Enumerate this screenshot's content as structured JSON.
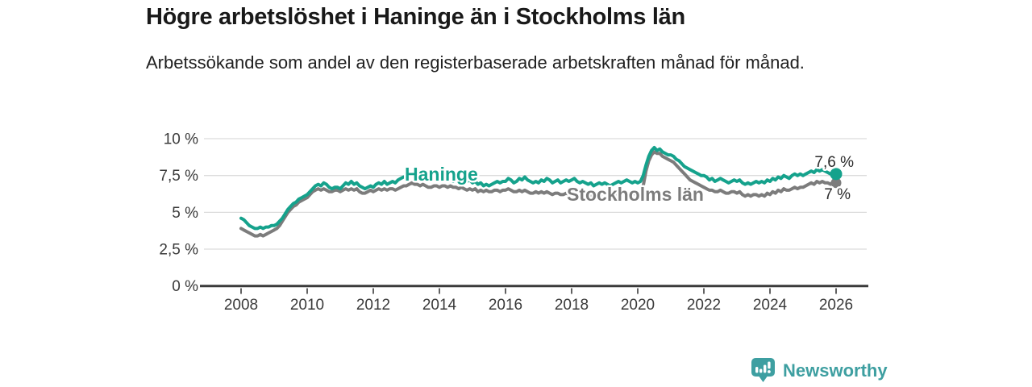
{
  "header": {
    "title": "Högre arbetslöshet i Haninge än i Stockholms län",
    "subtitle": "Arbetssökande som andel av den registerbaserade arbetskraften månad för månad."
  },
  "footer": {
    "brand": "Newsworthy",
    "brand_color": "#3e9fa1"
  },
  "chart_data": {
    "type": "line",
    "title": "Högre arbetslöshet i Haninge än i Stockholms län",
    "subtitle": "Arbetssökande som andel av den registerbaserade arbetskraften månad för månad.",
    "xlabel": "",
    "ylabel": "",
    "unit": "%",
    "grid": "horizontal-only",
    "legend_position": "inline-labels",
    "x_start": 2008.0,
    "x_step_years": 0.0833333,
    "x_range": [
      2008.0,
      2026.0
    ],
    "ylim": [
      0,
      10
    ],
    "yticks": [
      {
        "value": 0,
        "label": "0 %"
      },
      {
        "value": 2.5,
        "label": "2,5 %"
      },
      {
        "value": 5,
        "label": "5 %"
      },
      {
        "value": 7.5,
        "label": "7,5 %"
      },
      {
        "value": 10,
        "label": "10 %"
      }
    ],
    "xticks": [
      2008,
      2010,
      2012,
      2014,
      2016,
      2018,
      2020,
      2022,
      2024,
      2026
    ],
    "axis_color": "#3a3a3a",
    "gridline_color": "#dcdcdc",
    "annotation_color": "#2b2b2b",
    "series": [
      {
        "id": "haninge",
        "name": "Haninge",
        "color": "#15a28c",
        "end_label": "7,6 %",
        "end_value": 7.6,
        "values": [
          4.6,
          4.5,
          4.3,
          4.1,
          4.0,
          3.9,
          3.9,
          4.0,
          3.9,
          4.0,
          4.0,
          4.1,
          4.1,
          4.2,
          4.4,
          4.6,
          4.9,
          5.2,
          5.4,
          5.6,
          5.7,
          5.9,
          6.0,
          6.1,
          6.2,
          6.4,
          6.6,
          6.8,
          6.9,
          6.8,
          7.0,
          6.9,
          6.7,
          6.6,
          6.7,
          6.7,
          6.6,
          6.8,
          7.0,
          6.9,
          7.1,
          6.9,
          7.0,
          6.8,
          6.7,
          6.6,
          6.7,
          6.8,
          6.7,
          6.9,
          7.0,
          6.9,
          7.1,
          6.9,
          7.0,
          7.1,
          7.0,
          7.2,
          7.3,
          7.4,
          7.4,
          7.5,
          7.7,
          7.6,
          7.7,
          7.6,
          7.7,
          7.5,
          7.4,
          7.3,
          7.4,
          7.3,
          7.2,
          7.3,
          7.4,
          7.2,
          7.3,
          7.1,
          7.2,
          7.3,
          7.1,
          7.2,
          7.1,
          7.2,
          7.0,
          7.1,
          6.9,
          7.0,
          6.8,
          6.9,
          6.8,
          6.9,
          7.0,
          7.1,
          7.0,
          7.1,
          7.1,
          7.3,
          7.2,
          7.0,
          7.1,
          7.3,
          7.2,
          7.4,
          7.2,
          7.1,
          7.0,
          7.1,
          7.0,
          7.2,
          7.1,
          7.3,
          7.2,
          7.0,
          7.1,
          7.2,
          7.0,
          7.1,
          7.2,
          7.1,
          7.2,
          7.3,
          7.1,
          7.0,
          7.1,
          7.0,
          6.9,
          7.0,
          6.8,
          6.9,
          7.0,
          6.9,
          7.0,
          6.9,
          6.8,
          6.9,
          7.0,
          7.1,
          7.0,
          7.1,
          7.2,
          7.1,
          7.0,
          7.1,
          7.0,
          7.1,
          7.5,
          8.2,
          8.8,
          9.2,
          9.4,
          9.2,
          9.3,
          9.1,
          9.0,
          8.9,
          8.9,
          8.8,
          8.6,
          8.5,
          8.3,
          8.1,
          8.0,
          7.9,
          7.8,
          7.7,
          7.6,
          7.5,
          7.5,
          7.4,
          7.2,
          7.3,
          7.1,
          7.2,
          7.3,
          7.2,
          7.1,
          7.0,
          7.1,
          7.2,
          7.1,
          7.2,
          7.0,
          6.9,
          7.0,
          6.9,
          7.0,
          7.1,
          7.0,
          7.1,
          7.0,
          7.2,
          7.1,
          7.3,
          7.2,
          7.4,
          7.3,
          7.5,
          7.4,
          7.3,
          7.5,
          7.6,
          7.5,
          7.6,
          7.5,
          7.6,
          7.7,
          7.8,
          7.7,
          7.9,
          7.8,
          7.9,
          7.8,
          7.7,
          7.6,
          7.7,
          7.6
        ]
      },
      {
        "id": "stockholms-lan",
        "name": "Stockholms län",
        "color": "#7c7c7c",
        "end_label": "7 %",
        "end_value": 7.0,
        "values": [
          3.9,
          3.8,
          3.7,
          3.6,
          3.5,
          3.4,
          3.4,
          3.5,
          3.4,
          3.5,
          3.6,
          3.7,
          3.8,
          3.9,
          4.1,
          4.4,
          4.7,
          5.0,
          5.2,
          5.4,
          5.5,
          5.7,
          5.8,
          5.9,
          6.0,
          6.2,
          6.4,
          6.5,
          6.6,
          6.5,
          6.6,
          6.5,
          6.4,
          6.4,
          6.5,
          6.5,
          6.4,
          6.5,
          6.6,
          6.5,
          6.6,
          6.5,
          6.6,
          6.4,
          6.3,
          6.3,
          6.4,
          6.5,
          6.4,
          6.5,
          6.6,
          6.5,
          6.6,
          6.5,
          6.6,
          6.6,
          6.5,
          6.6,
          6.7,
          6.8,
          6.8,
          6.9,
          7.0,
          6.9,
          6.9,
          6.8,
          6.9,
          6.8,
          6.7,
          6.7,
          6.8,
          6.8,
          6.7,
          6.8,
          6.8,
          6.7,
          6.8,
          6.7,
          6.7,
          6.6,
          6.7,
          6.6,
          6.5,
          6.6,
          6.5,
          6.6,
          6.4,
          6.5,
          6.4,
          6.5,
          6.4,
          6.4,
          6.5,
          6.5,
          6.4,
          6.5,
          6.5,
          6.6,
          6.5,
          6.4,
          6.4,
          6.5,
          6.4,
          6.5,
          6.4,
          6.3,
          6.3,
          6.4,
          6.3,
          6.4,
          6.3,
          6.4,
          6.3,
          6.2,
          6.3,
          6.3,
          6.2,
          6.2,
          6.3,
          6.2,
          6.2,
          6.3,
          6.2,
          6.1,
          6.2,
          6.1,
          6.0,
          6.1,
          6.0,
          6.0,
          6.1,
          6.0,
          6.1,
          6.0,
          6.0,
          6.1,
          6.1,
          6.2,
          6.1,
          6.2,
          6.3,
          6.2,
          6.2,
          6.3,
          6.3,
          6.4,
          6.8,
          7.8,
          8.5,
          8.9,
          9.1,
          9.0,
          9.0,
          8.8,
          8.7,
          8.6,
          8.5,
          8.4,
          8.2,
          8.0,
          7.8,
          7.6,
          7.4,
          7.2,
          7.1,
          7.0,
          6.9,
          6.8,
          6.7,
          6.6,
          6.5,
          6.5,
          6.4,
          6.4,
          6.5,
          6.4,
          6.3,
          6.3,
          6.4,
          6.4,
          6.3,
          6.4,
          6.2,
          6.1,
          6.2,
          6.1,
          6.2,
          6.2,
          6.1,
          6.2,
          6.1,
          6.3,
          6.2,
          6.4,
          6.3,
          6.5,
          6.4,
          6.6,
          6.5,
          6.5,
          6.6,
          6.7,
          6.6,
          6.7,
          6.7,
          6.8,
          6.9,
          7.0,
          6.9,
          7.1,
          7.0,
          7.1,
          7.0,
          7.0,
          6.9,
          7.1,
          7.0
        ]
      }
    ]
  }
}
